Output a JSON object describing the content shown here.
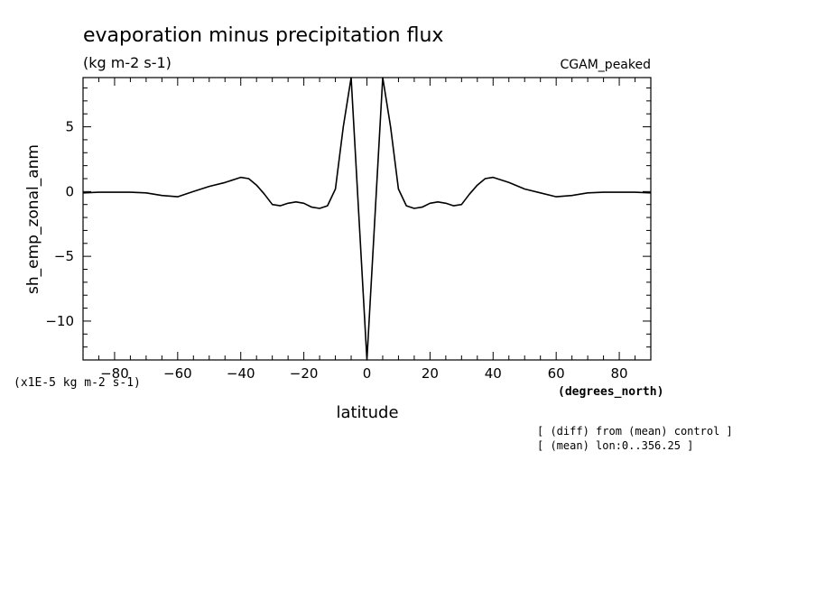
{
  "chart_data": {
    "type": "line",
    "title": "evaporation minus precipitation flux",
    "subtitle": "(kg m-2 s-1)",
    "dataset_label": "CGAM_peaked",
    "xlabel": "latitude",
    "x_units": "(degrees_north)",
    "ylabel": "sh_emp_zonal_anm",
    "y_units": "(x1E-5 kg m-2 s-1)",
    "notes": [
      "[ (diff) from (mean) control ]",
      "[ (mean) lon:0..356.25 ]"
    ],
    "xlim": [
      -90,
      90
    ],
    "ylim": [
      -13,
      8.8
    ],
    "x_ticks": [
      -80,
      -60,
      -40,
      -20,
      0,
      20,
      40,
      60,
      80
    ],
    "y_ticks": [
      5,
      0,
      -5,
      -10
    ],
    "grid": false,
    "series": [
      {
        "x": [
          -90,
          -85,
          -80,
          -75,
          -70,
          -65,
          -60,
          -55,
          -50,
          -45,
          -40,
          -37.5,
          -35,
          -32.5,
          -30,
          -27.5,
          -25,
          -22.5,
          -20,
          -17.5,
          -15,
          -12.5,
          -10,
          -7.5,
          -5,
          0,
          5,
          7.5,
          10,
          12.5,
          15,
          17.5,
          20,
          22.5,
          25,
          27.5,
          30,
          32.5,
          35,
          37.5,
          40,
          45,
          50,
          55,
          60,
          65,
          70,
          75,
          80,
          85,
          90
        ],
        "values": [
          -0.1,
          -0.05,
          -0.05,
          -0.05,
          -0.1,
          -0.3,
          -0.4,
          0.0,
          0.4,
          0.7,
          1.1,
          1.0,
          0.5,
          -0.2,
          -1.0,
          -1.1,
          -0.9,
          -0.8,
          -0.9,
          -1.2,
          -1.3,
          -1.1,
          0.2,
          5.0,
          8.8,
          -13.0,
          8.8,
          5.0,
          0.2,
          -1.1,
          -1.3,
          -1.2,
          -0.9,
          -0.8,
          -0.9,
          -1.1,
          -1.0,
          -0.2,
          0.5,
          1.0,
          1.1,
          0.7,
          0.2,
          -0.1,
          -0.4,
          -0.3,
          -0.1,
          -0.05,
          -0.05,
          -0.05,
          -0.1
        ]
      }
    ]
  }
}
